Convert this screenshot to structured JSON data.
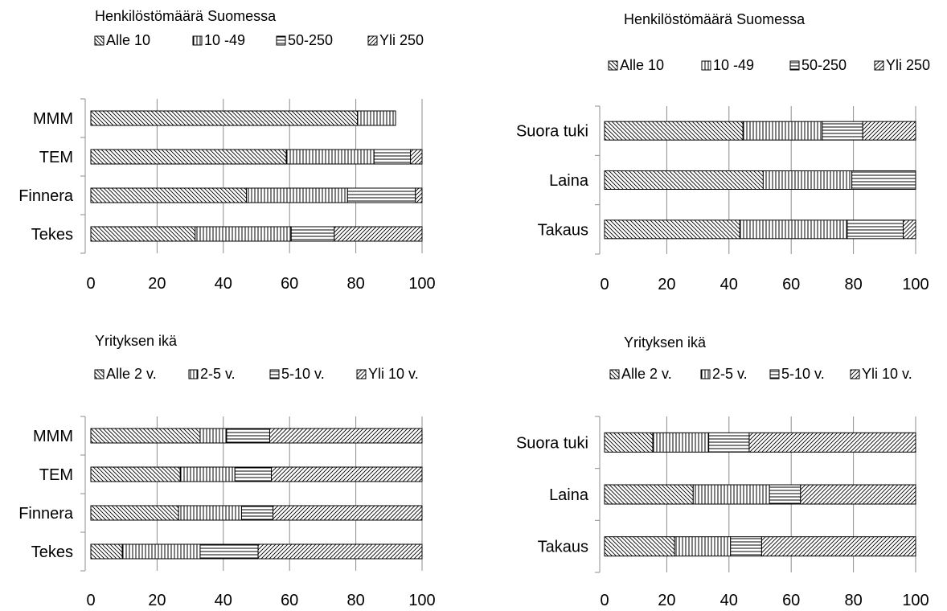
{
  "chart_data": [
    {
      "type": "bar",
      "orientation": "horizontal",
      "stacked": true,
      "title": "Henkilöstömäärä Suomessa",
      "legend_position": "top",
      "categories": [
        "MMM",
        "TEM",
        "Finnera",
        "Tekes"
      ],
      "xlim": [
        0,
        100
      ],
      "x_ticks": [
        "0",
        "20",
        "40",
        "60",
        "80",
        "100"
      ],
      "grid": "vertical",
      "series": [
        {
          "name": "Alle 10",
          "values": [
            80.5,
            59,
            47,
            31.5
          ],
          "pattern": "diag-back"
        },
        {
          "name": "10 -49",
          "values": [
            11.5,
            26.5,
            30.5,
            29
          ],
          "pattern": "vertical"
        },
        {
          "name": "50-250",
          "values": [
            0,
            11,
            20.5,
            13
          ],
          "pattern": "horizontal"
        },
        {
          "name": "Yli 250",
          "values": [
            0,
            3.5,
            2,
            26.5
          ],
          "pattern": "diag-fwd"
        }
      ]
    },
    {
      "type": "bar",
      "orientation": "horizontal",
      "stacked": true,
      "title": "Henkilöstömäärä Suomessa",
      "legend_position": "top",
      "categories": [
        "Suora tuki",
        "Laina",
        "Takaus"
      ],
      "xlim": [
        0,
        100
      ],
      "x_ticks": [
        "0",
        "20",
        "40",
        "60",
        "80",
        "100"
      ],
      "grid": "vertical",
      "series": [
        {
          "name": "Alle 10",
          "values": [
            44.5,
            51,
            43.5
          ],
          "pattern": "diag-back"
        },
        {
          "name": "10 -49",
          "values": [
            25.5,
            28.5,
            34.5
          ],
          "pattern": "vertical"
        },
        {
          "name": "50-250",
          "values": [
            13,
            20.5,
            18
          ],
          "pattern": "horizontal"
        },
        {
          "name": "Yli 250",
          "values": [
            17,
            0,
            4
          ],
          "pattern": "diag-fwd"
        }
      ]
    },
    {
      "type": "bar",
      "orientation": "horizontal",
      "stacked": true,
      "title": "Yrityksen ikä",
      "legend_position": "top",
      "categories": [
        "MMM",
        "TEM",
        "Finnera",
        "Tekes"
      ],
      "xlim": [
        0,
        100
      ],
      "x_ticks": [
        "0",
        "20",
        "40",
        "60",
        "80",
        "100"
      ],
      "grid": "vertical",
      "series": [
        {
          "name": "Alle 2 v.",
          "values": [
            33,
            27,
            26.5,
            9.5
          ],
          "pattern": "diag-back"
        },
        {
          "name": "2-5 v.",
          "values": [
            8,
            16.5,
            19,
            23.5
          ],
          "pattern": "vertical"
        },
        {
          "name": "5-10 v.",
          "values": [
            13,
            11,
            9.5,
            17.5
          ],
          "pattern": "horizontal"
        },
        {
          "name": "Yli 10 v.",
          "values": [
            46,
            45.5,
            45,
            49.5
          ],
          "pattern": "diag-fwd"
        }
      ]
    },
    {
      "type": "bar",
      "orientation": "horizontal",
      "stacked": true,
      "title": "Yrityksen ikä",
      "legend_position": "top",
      "categories": [
        "Suora tuki",
        "Laina",
        "Takaus"
      ],
      "xlim": [
        0,
        100
      ],
      "x_ticks": [
        "0",
        "20",
        "40",
        "60",
        "80",
        "100"
      ],
      "grid": "vertical",
      "series": [
        {
          "name": "Alle 2 v.",
          "values": [
            15.5,
            28.5,
            22.5
          ],
          "pattern": "diag-back"
        },
        {
          "name": "2-5 v.",
          "values": [
            18,
            24.5,
            18
          ],
          "pattern": "vertical"
        },
        {
          "name": "5-10 v.",
          "values": [
            13,
            10,
            10
          ],
          "pattern": "horizontal"
        },
        {
          "name": "Yli 10 v.",
          "values": [
            53.5,
            37,
            49.5
          ],
          "pattern": "diag-fwd"
        }
      ]
    }
  ]
}
